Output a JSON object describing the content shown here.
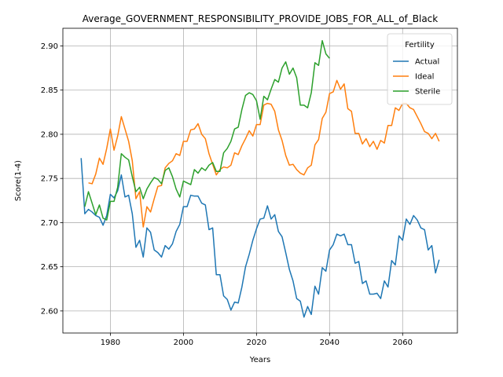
{
  "chart_data": {
    "type": "line",
    "title": "Average_GOVERNMENT_RESPONSIBILITY_PROVIDE_JOBS_FOR_ALL_of_Black",
    "xlabel": "Years",
    "ylabel": "Score(1-4)",
    "xlim": [
      1967,
      2075
    ],
    "ylim": [
      2.575,
      2.92
    ],
    "xticks": [
      1980,
      2000,
      2020,
      2040,
      2060
    ],
    "yticks": [
      2.6,
      2.65,
      2.7,
      2.75,
      2.8,
      2.85,
      2.9
    ],
    "grid": true,
    "legend": {
      "title": "Fertility",
      "placement": "top-right"
    },
    "colors": {
      "Actual": "#1f77b4",
      "Ideal": "#ff7f0e",
      "Sterile": "#2ca02c"
    },
    "series": [
      {
        "name": "Actual",
        "x": [
          1972,
          1973,
          1974,
          1975,
          1976,
          1977,
          1978,
          1979,
          1980,
          1981,
          1982,
          1983,
          1984,
          1985,
          1986,
          1987,
          1988,
          1989,
          1990,
          1991,
          1992,
          1993,
          1994,
          1995,
          1996,
          1997,
          1998,
          1999,
          2000,
          2001,
          2002,
          2003,
          2004,
          2005,
          2006,
          2007,
          2008,
          2009,
          2010,
          2011,
          2012,
          2013,
          2014,
          2015,
          2016,
          2017,
          2018,
          2019,
          2020,
          2021,
          2022,
          2023,
          2024,
          2025,
          2026,
          2027,
          2028,
          2029,
          2030,
          2031,
          2032,
          2033,
          2034,
          2035,
          2036,
          2037,
          2038,
          2039,
          2040,
          2041,
          2042,
          2043,
          2044,
          2045,
          2046,
          2047,
          2048,
          2049,
          2050,
          2051,
          2052,
          2053,
          2054,
          2055,
          2056,
          2057,
          2058,
          2059,
          2060,
          2061,
          2062,
          2063,
          2064,
          2065,
          2066,
          2067,
          2068,
          2069,
          2070
        ],
        "values": [
          2.773,
          2.71,
          2.715,
          2.712,
          2.708,
          2.706,
          2.697,
          2.708,
          2.732,
          2.728,
          2.736,
          2.754,
          2.729,
          2.731,
          2.71,
          2.672,
          2.68,
          2.661,
          2.694,
          2.689,
          2.669,
          2.666,
          2.661,
          2.674,
          2.67,
          2.676,
          2.69,
          2.698,
          2.718,
          2.718,
          2.731,
          2.73,
          2.73,
          2.722,
          2.72,
          2.692,
          2.694,
          2.641,
          2.641,
          2.617,
          2.613,
          2.601,
          2.61,
          2.609,
          2.627,
          2.65,
          2.664,
          2.68,
          2.693,
          2.704,
          2.705,
          2.719,
          2.704,
          2.709,
          2.69,
          2.684,
          2.666,
          2.647,
          2.634,
          2.614,
          2.611,
          2.593,
          2.605,
          2.596,
          2.628,
          2.619,
          2.649,
          2.645,
          2.669,
          2.675,
          2.687,
          2.685,
          2.687,
          2.675,
          2.675,
          2.654,
          2.656,
          2.631,
          2.634,
          2.619,
          2.619,
          2.62,
          2.614,
          2.634,
          2.627,
          2.657,
          2.652,
          2.685,
          2.68,
          2.704,
          2.698,
          2.708,
          2.703,
          2.694,
          2.692,
          2.669,
          2.674,
          2.643,
          2.658
        ]
      },
      {
        "name": "Ideal",
        "x": [
          1974,
          1975,
          1976,
          1977,
          1978,
          1979,
          1980,
          1981,
          1982,
          1983,
          1984,
          1985,
          1986,
          1987,
          1988,
          1989,
          1990,
          1991,
          1992,
          1993,
          1994,
          1995,
          1996,
          1997,
          1998,
          1999,
          2000,
          2001,
          2002,
          2003,
          2004,
          2005,
          2006,
          2007,
          2008,
          2009,
          2010,
          2011,
          2012,
          2013,
          2014,
          2015,
          2016,
          2017,
          2018,
          2019,
          2020,
          2021,
          2022,
          2023,
          2024,
          2025,
          2026,
          2027,
          2028,
          2029,
          2030,
          2031,
          2032,
          2033,
          2034,
          2035,
          2036,
          2037,
          2038,
          2039,
          2040,
          2041,
          2042,
          2043,
          2044,
          2045,
          2046,
          2047,
          2048,
          2049,
          2050,
          2051,
          2052,
          2053,
          2054,
          2055,
          2056,
          2057,
          2058,
          2059,
          2060,
          2061,
          2062,
          2063,
          2064,
          2065,
          2066,
          2067,
          2068,
          2069,
          2070
        ],
        "values": [
          2.745,
          2.744,
          2.755,
          2.773,
          2.766,
          2.784,
          2.806,
          2.782,
          2.798,
          2.82,
          2.806,
          2.792,
          2.77,
          2.727,
          2.735,
          2.695,
          2.718,
          2.712,
          2.727,
          2.741,
          2.742,
          2.762,
          2.767,
          2.77,
          2.778,
          2.776,
          2.792,
          2.792,
          2.805,
          2.806,
          2.812,
          2.8,
          2.795,
          2.778,
          2.766,
          2.754,
          2.76,
          2.763,
          2.762,
          2.765,
          2.779,
          2.777,
          2.787,
          2.795,
          2.804,
          2.798,
          2.811,
          2.811,
          2.833,
          2.835,
          2.834,
          2.826,
          2.805,
          2.793,
          2.776,
          2.765,
          2.766,
          2.76,
          2.756,
          2.754,
          2.762,
          2.765,
          2.788,
          2.794,
          2.818,
          2.825,
          2.846,
          2.848,
          2.861,
          2.851,
          2.857,
          2.829,
          2.826,
          2.801,
          2.801,
          2.789,
          2.795,
          2.786,
          2.792,
          2.783,
          2.793,
          2.79,
          2.81,
          2.81,
          2.83,
          2.827,
          2.835,
          2.835,
          2.83,
          2.828,
          2.82,
          2.812,
          2.803,
          2.801,
          2.795,
          2.801,
          2.792
        ]
      },
      {
        "name": "Sterile",
        "x": [
          1973,
          1974,
          1975,
          1976,
          1977,
          1978,
          1979,
          1980,
          1981,
          1982,
          1983,
          1984,
          1985,
          1986,
          1987,
          1988,
          1989,
          1990,
          1991,
          1992,
          1993,
          1994,
          1995,
          1996,
          1997,
          1998,
          1999,
          2000,
          2001,
          2002,
          2003,
          2004,
          2005,
          2006,
          2007,
          2008,
          2009,
          2010,
          2011,
          2012,
          2013,
          2014,
          2015,
          2016,
          2017,
          2018,
          2019,
          2020,
          2021,
          2022,
          2023,
          2024,
          2025,
          2026,
          2027,
          2028,
          2029,
          2030,
          2031,
          2032,
          2033,
          2034,
          2035,
          2036,
          2037,
          2038,
          2039,
          2040
        ],
        "values": [
          2.718,
          2.735,
          2.722,
          2.709,
          2.72,
          2.705,
          2.703,
          2.724,
          2.724,
          2.74,
          2.778,
          2.774,
          2.771,
          2.752,
          2.735,
          2.74,
          2.727,
          2.738,
          2.745,
          2.751,
          2.749,
          2.744,
          2.759,
          2.762,
          2.752,
          2.738,
          2.729,
          2.747,
          2.745,
          2.743,
          2.76,
          2.756,
          2.762,
          2.759,
          2.765,
          2.768,
          2.758,
          2.758,
          2.779,
          2.784,
          2.792,
          2.806,
          2.808,
          2.828,
          2.844,
          2.847,
          2.845,
          2.838,
          2.817,
          2.843,
          2.839,
          2.851,
          2.862,
          2.859,
          2.875,
          2.882,
          2.868,
          2.875,
          2.864,
          2.833,
          2.833,
          2.83,
          2.847,
          2.881,
          2.878,
          2.906,
          2.891,
          2.886
        ]
      }
    ]
  }
}
